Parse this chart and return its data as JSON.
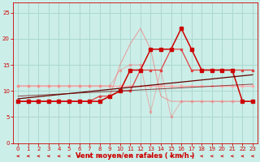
{
  "x": [
    0,
    1,
    2,
    3,
    4,
    5,
    6,
    7,
    8,
    9,
    10,
    11,
    12,
    13,
    14,
    15,
    16,
    17,
    18,
    19,
    20,
    21,
    22,
    23
  ],
  "line_pink_flat": [
    11,
    11,
    11,
    11,
    11,
    11,
    11,
    11,
    11,
    11,
    11,
    11,
    11,
    11,
    11,
    11,
    11,
    11,
    11,
    11,
    11,
    11,
    11,
    11
  ],
  "line_light_pink": [
    8,
    8,
    8,
    8,
    8,
    8,
    8,
    8,
    8,
    9,
    15,
    19,
    22,
    18,
    9,
    8,
    8,
    8,
    8,
    8,
    8,
    8,
    8,
    8
  ],
  "line_pink_zigzag": [
    11,
    11,
    11,
    11,
    11,
    11,
    11,
    11,
    11,
    11,
    14,
    15,
    15,
    6,
    14,
    5,
    8,
    8,
    8,
    8,
    8,
    8,
    8,
    8
  ],
  "line_red_main": [
    8,
    8,
    8,
    8,
    8,
    8,
    8,
    8,
    8,
    9,
    10,
    14,
    14,
    18,
    18,
    18,
    22,
    18,
    14,
    14,
    14,
    14,
    8,
    8
  ],
  "line_red_jagged": [
    8,
    8,
    8,
    8,
    8,
    8,
    8,
    8,
    9,
    9,
    10,
    10,
    14,
    14,
    14,
    18,
    18,
    14,
    14,
    14,
    14,
    14,
    14,
    14
  ],
  "line_trend1": [
    8.5,
    8.7,
    8.9,
    9.1,
    9.3,
    9.5,
    9.7,
    9.9,
    10.1,
    10.3,
    10.5,
    10.7,
    10.9,
    11.1,
    11.3,
    11.5,
    11.7,
    11.9,
    12.1,
    12.3,
    12.5,
    12.7,
    12.9,
    13.1
  ],
  "line_trend2": [
    9.0,
    9.1,
    9.2,
    9.3,
    9.4,
    9.5,
    9.6,
    9.7,
    9.8,
    9.9,
    10.0,
    10.1,
    10.2,
    10.3,
    10.4,
    10.5,
    10.6,
    10.7,
    10.8,
    10.9,
    11.0,
    11.1,
    11.2,
    11.3
  ],
  "bg_color": "#cceee8",
  "grid_color": "#aad8d0",
  "color_dark_red": "#cc0000",
  "color_mid_red": "#dd4444",
  "color_light_red": "#ee8888",
  "color_pink": "#ffaaaa",
  "color_trend": "#660000",
  "xlabel": "Vent moyen/en rafales ( km/h )",
  "ylim": [
    0,
    27
  ],
  "xlim": [
    -0.5,
    23.5
  ],
  "yticks": [
    0,
    5,
    10,
    15,
    20,
    25
  ],
  "xticks": [
    0,
    1,
    2,
    3,
    4,
    5,
    6,
    7,
    8,
    9,
    10,
    11,
    12,
    13,
    14,
    15,
    16,
    17,
    18,
    19,
    20,
    21,
    22,
    23
  ]
}
